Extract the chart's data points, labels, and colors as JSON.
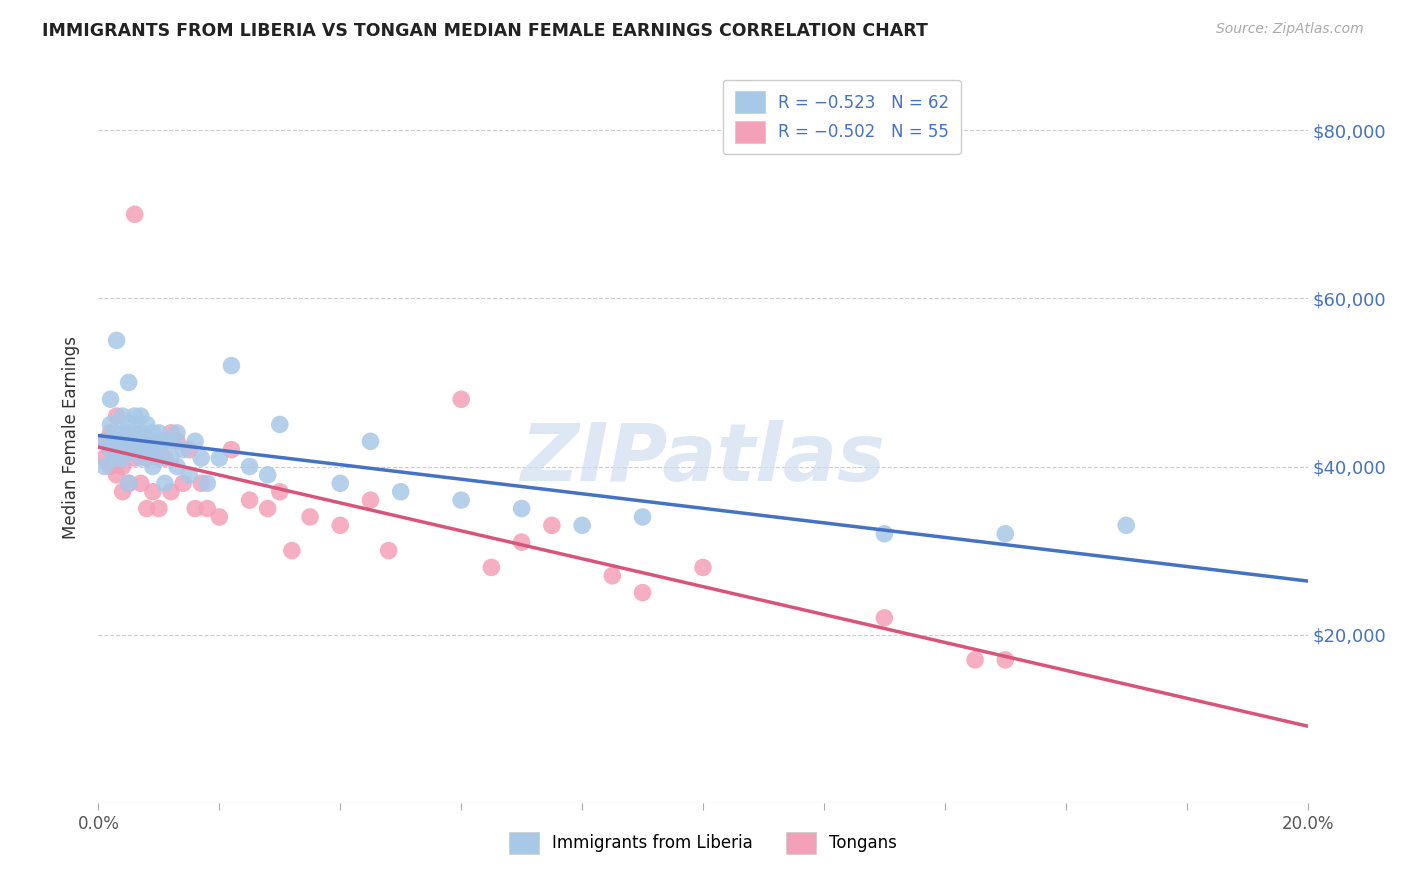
{
  "title": "IMMIGRANTS FROM LIBERIA VS TONGAN MEDIAN FEMALE EARNINGS CORRELATION CHART",
  "source": "Source: ZipAtlas.com",
  "ylabel": "Median Female Earnings",
  "y_ticks": [
    0,
    20000,
    40000,
    60000,
    80000
  ],
  "y_tick_labels": [
    "",
    "$20,000",
    "$40,000",
    "$60,000",
    "$80,000"
  ],
  "x_lim": [
    0.0,
    0.2
  ],
  "y_lim": [
    0,
    87000
  ],
  "legend_label1": "R = −0.523   N = 62",
  "legend_label2": "R = −0.502   N = 55",
  "watermark": "ZIPatlas",
  "color_liberia": "#a8c8e8",
  "color_tongan": "#f4a0b8",
  "line_color_liberia": "#4472c4",
  "line_color_tongan": "#d9547a",
  "bottom_label1": "Immigrants from Liberia",
  "bottom_label2": "Tongans",
  "liberia_x": [
    0.001,
    0.001,
    0.002,
    0.002,
    0.002,
    0.003,
    0.003,
    0.003,
    0.003,
    0.004,
    0.004,
    0.004,
    0.004,
    0.005,
    0.005,
    0.005,
    0.005,
    0.005,
    0.006,
    0.006,
    0.006,
    0.006,
    0.007,
    0.007,
    0.007,
    0.007,
    0.008,
    0.008,
    0.008,
    0.009,
    0.009,
    0.009,
    0.009,
    0.01,
    0.01,
    0.01,
    0.011,
    0.011,
    0.012,
    0.012,
    0.013,
    0.013,
    0.014,
    0.015,
    0.016,
    0.017,
    0.018,
    0.02,
    0.022,
    0.025,
    0.028,
    0.03,
    0.04,
    0.045,
    0.05,
    0.06,
    0.07,
    0.08,
    0.09,
    0.13,
    0.15,
    0.17
  ],
  "liberia_y": [
    43000,
    40000,
    45000,
    42000,
    48000,
    55000,
    43000,
    41000,
    44000,
    43000,
    46000,
    44000,
    41000,
    43000,
    45000,
    50000,
    42000,
    38000,
    43000,
    44000,
    46000,
    42000,
    44000,
    43000,
    41000,
    46000,
    43000,
    45000,
    42000,
    44000,
    42000,
    40000,
    43000,
    44000,
    42000,
    41000,
    43000,
    38000,
    43000,
    41000,
    44000,
    40000,
    42000,
    39000,
    43000,
    41000,
    38000,
    41000,
    52000,
    40000,
    39000,
    45000,
    38000,
    43000,
    37000,
    36000,
    35000,
    33000,
    34000,
    32000,
    32000,
    33000
  ],
  "tongan_x": [
    0.001,
    0.001,
    0.002,
    0.002,
    0.002,
    0.003,
    0.003,
    0.003,
    0.004,
    0.004,
    0.004,
    0.005,
    0.005,
    0.005,
    0.006,
    0.006,
    0.006,
    0.007,
    0.007,
    0.007,
    0.008,
    0.008,
    0.009,
    0.009,
    0.01,
    0.01,
    0.011,
    0.012,
    0.012,
    0.013,
    0.014,
    0.015,
    0.016,
    0.017,
    0.018,
    0.02,
    0.022,
    0.025,
    0.028,
    0.03,
    0.032,
    0.035,
    0.04,
    0.045,
    0.048,
    0.06,
    0.065,
    0.07,
    0.075,
    0.085,
    0.09,
    0.1,
    0.13,
    0.145,
    0.15
  ],
  "tongan_y": [
    43000,
    41000,
    42000,
    44000,
    40000,
    42000,
    39000,
    46000,
    43000,
    40000,
    37000,
    44000,
    42000,
    38000,
    43000,
    41000,
    70000,
    44000,
    38000,
    42000,
    41000,
    35000,
    43000,
    37000,
    42000,
    35000,
    41000,
    44000,
    37000,
    43000,
    38000,
    42000,
    35000,
    38000,
    35000,
    34000,
    42000,
    36000,
    35000,
    37000,
    30000,
    34000,
    33000,
    36000,
    30000,
    48000,
    28000,
    31000,
    33000,
    27000,
    25000,
    28000,
    22000,
    17000,
    17000
  ]
}
